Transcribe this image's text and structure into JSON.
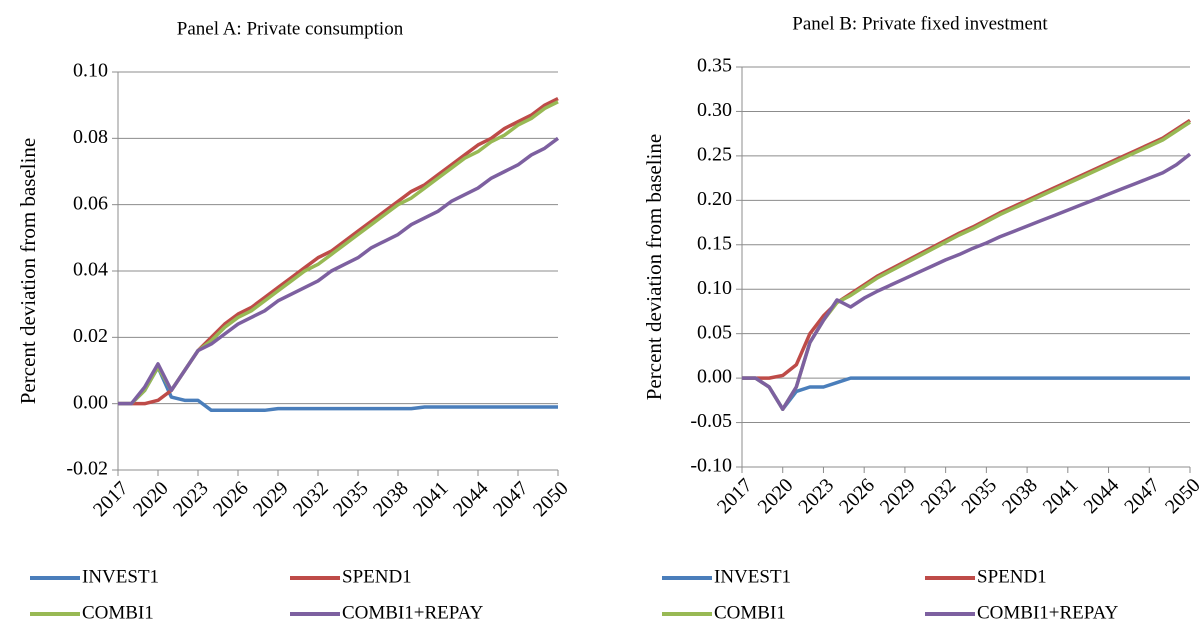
{
  "chart_data": [
    {
      "type": "line",
      "title": "Panel A: Private consumption",
      "y_label": "Percent deviation from baseline",
      "x": [
        2017,
        2018,
        2019,
        2020,
        2021,
        2022,
        2023,
        2024,
        2025,
        2026,
        2027,
        2028,
        2029,
        2030,
        2031,
        2032,
        2033,
        2034,
        2035,
        2036,
        2037,
        2038,
        2039,
        2040,
        2041,
        2042,
        2043,
        2044,
        2045,
        2046,
        2047,
        2048,
        2049,
        2050
      ],
      "xlim": [
        2017,
        2050
      ],
      "xticks": [
        2017,
        2020,
        2023,
        2026,
        2029,
        2032,
        2035,
        2038,
        2041,
        2044,
        2047,
        2050
      ],
      "ylim": [
        -0.02,
        0.1
      ],
      "yticks": [
        -0.02,
        {
          "value": 0,
          "label": "0.00"
        },
        0.02,
        0.04,
        0.06,
        0.08,
        {
          "value": 0.1,
          "label": "0.10"
        }
      ],
      "grid": true,
      "series": [
        {
          "name": "INVEST1",
          "color": "#4a7ebb",
          "values": [
            0,
            0,
            0.004,
            0.011,
            0.002,
            0.001,
            0.001,
            -0.002,
            -0.002,
            -0.002,
            -0.002,
            -0.002,
            -0.0015,
            -0.0015,
            -0.0015,
            -0.0015,
            -0.0015,
            -0.0015,
            -0.0015,
            -0.0015,
            -0.0015,
            -0.0015,
            -0.0015,
            -0.001,
            -0.001,
            -0.001,
            -0.001,
            -0.001,
            -0.001,
            -0.001,
            -0.001,
            -0.001,
            -0.001,
            -0.001
          ]
        },
        {
          "name": "SPEND1",
          "color": "#be4b48",
          "values": [
            0,
            0,
            0,
            0.001,
            0.004,
            0.01,
            0.016,
            0.02,
            0.024,
            0.027,
            0.029,
            0.032,
            0.035,
            0.038,
            0.041,
            0.044,
            0.046,
            0.049,
            0.052,
            0.055,
            0.058,
            0.061,
            0.064,
            0.066,
            0.069,
            0.072,
            0.075,
            0.078,
            0.08,
            0.083,
            0.085,
            0.087,
            0.09,
            0.092
          ]
        },
        {
          "name": "COMBI1",
          "color": "#98b954",
          "values": [
            0,
            0,
            0.004,
            0.011,
            0.004,
            0.01,
            0.016,
            0.019,
            0.023,
            0.026,
            0.028,
            0.031,
            0.034,
            0.037,
            0.04,
            0.042,
            0.045,
            0.048,
            0.051,
            0.054,
            0.057,
            0.06,
            0.062,
            0.065,
            0.068,
            0.071,
            0.074,
            0.076,
            0.079,
            0.081,
            0.084,
            0.086,
            0.089,
            0.091
          ]
        },
        {
          "name": "COMBI1+REPAY",
          "color": "#7d60a0",
          "values": [
            0,
            0,
            0.005,
            0.012,
            0.004,
            0.01,
            0.016,
            0.018,
            0.021,
            0.024,
            0.026,
            0.028,
            0.031,
            0.033,
            0.035,
            0.037,
            0.04,
            0.042,
            0.044,
            0.047,
            0.049,
            0.051,
            0.054,
            0.056,
            0.058,
            0.061,
            0.063,
            0.065,
            0.068,
            0.07,
            0.072,
            0.075,
            0.077,
            0.08
          ]
        }
      ]
    },
    {
      "type": "line",
      "title": "Panel B: Private fixed investment",
      "y_label": "Percent deviation from baseline",
      "x": [
        2017,
        2018,
        2019,
        2020,
        2021,
        2022,
        2023,
        2024,
        2025,
        2026,
        2027,
        2028,
        2029,
        2030,
        2031,
        2032,
        2033,
        2034,
        2035,
        2036,
        2037,
        2038,
        2039,
        2040,
        2041,
        2042,
        2043,
        2044,
        2045,
        2046,
        2047,
        2048,
        2049,
        2050
      ],
      "xlim": [
        2017,
        2050
      ],
      "xticks": [
        2017,
        2020,
        2023,
        2026,
        2029,
        2032,
        2035,
        2038,
        2041,
        2044,
        2047,
        2050
      ],
      "ylim": [
        -0.1,
        0.35
      ],
      "yticks": [
        {
          "value": -0.1,
          "label": "-0.10"
        },
        -0.05,
        {
          "value": 0,
          "label": "0.00"
        },
        0.05,
        {
          "value": 0.1,
          "label": "0.10"
        },
        0.15,
        {
          "value": 0.2,
          "label": "0.20"
        },
        0.25,
        {
          "value": 0.3,
          "label": "0.30"
        },
        0.35
      ],
      "grid": true,
      "series": [
        {
          "name": "INVEST1",
          "color": "#4a7ebb",
          "values": [
            0,
            0,
            -0.01,
            -0.035,
            -0.015,
            -0.01,
            -0.01,
            -0.005,
            0,
            0,
            0,
            0,
            0,
            0,
            0,
            0,
            0,
            0,
            0,
            0,
            0,
            0,
            0,
            0,
            0,
            0,
            0,
            0,
            0,
            0,
            0,
            0,
            0,
            0
          ]
        },
        {
          "name": "SPEND1",
          "color": "#be4b48",
          "values": [
            0,
            0,
            0,
            0.003,
            0.015,
            0.05,
            0.07,
            0.085,
            0.095,
            0.105,
            0.115,
            0.123,
            0.131,
            0.139,
            0.147,
            0.155,
            0.163,
            0.17,
            0.178,
            0.186,
            0.193,
            0.2,
            0.207,
            0.214,
            0.221,
            0.228,
            0.235,
            0.242,
            0.249,
            0.256,
            0.263,
            0.27,
            0.28,
            0.29
          ]
        },
        {
          "name": "COMBI1",
          "color": "#98b954",
          "values": [
            0,
            0,
            -0.01,
            -0.035,
            -0.01,
            0.04,
            0.065,
            0.085,
            0.093,
            0.103,
            0.113,
            0.121,
            0.129,
            0.137,
            0.145,
            0.153,
            0.161,
            0.168,
            0.176,
            0.184,
            0.191,
            0.198,
            0.205,
            0.212,
            0.219,
            0.226,
            0.233,
            0.24,
            0.247,
            0.254,
            0.261,
            0.268,
            0.278,
            0.288
          ]
        },
        {
          "name": "COMBI1+REPAY",
          "color": "#7d60a0",
          "values": [
            0,
            0,
            -0.01,
            -0.035,
            -0.01,
            0.04,
            0.065,
            0.088,
            0.08,
            0.09,
            0.098,
            0.105,
            0.112,
            0.119,
            0.126,
            0.133,
            0.139,
            0.146,
            0.152,
            0.159,
            0.165,
            0.171,
            0.177,
            0.183,
            0.189,
            0.195,
            0.201,
            0.207,
            0.213,
            0.219,
            0.225,
            0.231,
            0.24,
            0.252
          ]
        }
      ]
    }
  ]
}
